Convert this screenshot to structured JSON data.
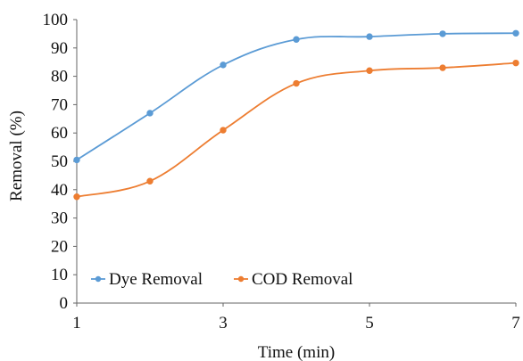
{
  "chart_data": {
    "type": "line",
    "title": "",
    "xlabel": "Time (min)",
    "ylabel": "Removal (%)",
    "xlim": [
      1,
      7
    ],
    "ylim": [
      0,
      100
    ],
    "x_ticks": [
      1,
      3,
      5,
      7
    ],
    "y_ticks": [
      0,
      10,
      20,
      30,
      40,
      50,
      60,
      70,
      80,
      90,
      100
    ],
    "grid": false,
    "legend_position": "bottom-left",
    "x": [
      1,
      2,
      3,
      4,
      5,
      6,
      7
    ],
    "series": [
      {
        "name": "Dye Removal",
        "color": "#5b9bd5",
        "values": [
          50.5,
          67,
          84,
          93,
          94,
          95,
          95.2
        ]
      },
      {
        "name": "COD Removal",
        "color": "#ed7d31",
        "values": [
          37.5,
          43,
          61,
          77.5,
          82,
          83,
          84.7
        ]
      }
    ]
  }
}
